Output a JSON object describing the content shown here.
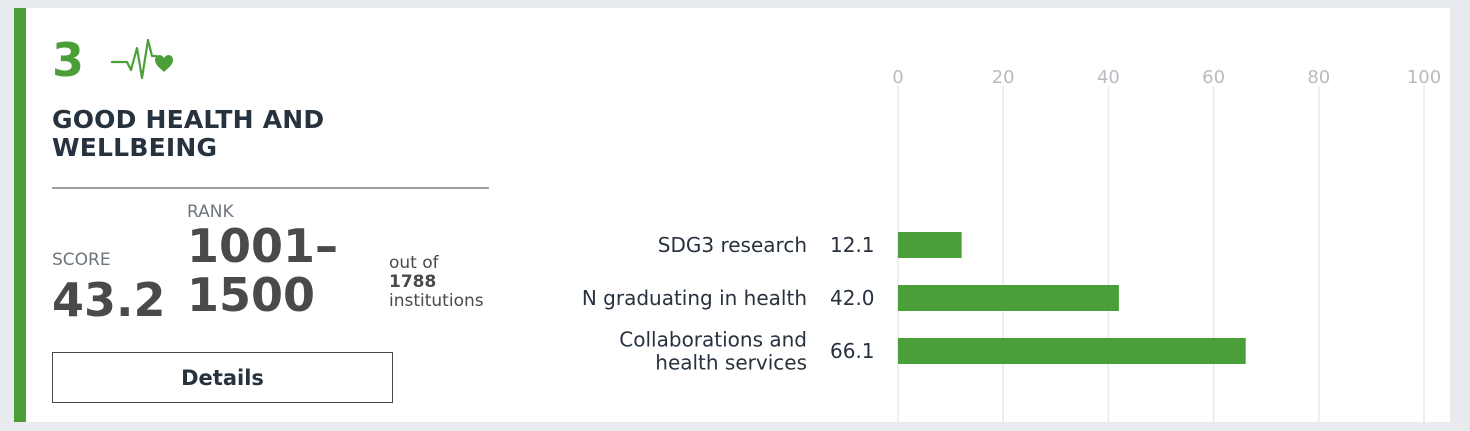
{
  "goal": {
    "number": "3",
    "title": "GOOD HEALTH AND WELLBEING",
    "icon": "heartbeat-icon",
    "color": "#4b9f38"
  },
  "score": {
    "label": "SCORE",
    "value": "43.2"
  },
  "rank": {
    "label": "RANK",
    "value": "1001–1500",
    "out_of_text": "out of",
    "total": "1788",
    "institutions_text": "institutions"
  },
  "details_button": {
    "label": "Details"
  },
  "chart_data": {
    "type": "bar",
    "orientation": "horizontal",
    "categories": [
      "SDG3 research",
      "N graduating in health",
      "Collaborations and health services"
    ],
    "category_lines": [
      [
        "SDG3 research"
      ],
      [
        "N graduating in health"
      ],
      [
        "Collaborations and",
        "health services"
      ]
    ],
    "values": [
      12.1,
      42.0,
      66.1
    ],
    "value_labels": [
      "12.1",
      "42.0",
      "66.1"
    ],
    "xlim": [
      0,
      100
    ],
    "ticks": [
      0,
      20,
      40,
      60,
      80,
      100
    ],
    "tick_labels": [
      "0",
      "20",
      "40",
      "60",
      "80",
      "100"
    ],
    "tick_position": "top",
    "grid": true,
    "bar_color": "#4b9f38",
    "title": "",
    "xlabel": "",
    "ylabel": ""
  }
}
